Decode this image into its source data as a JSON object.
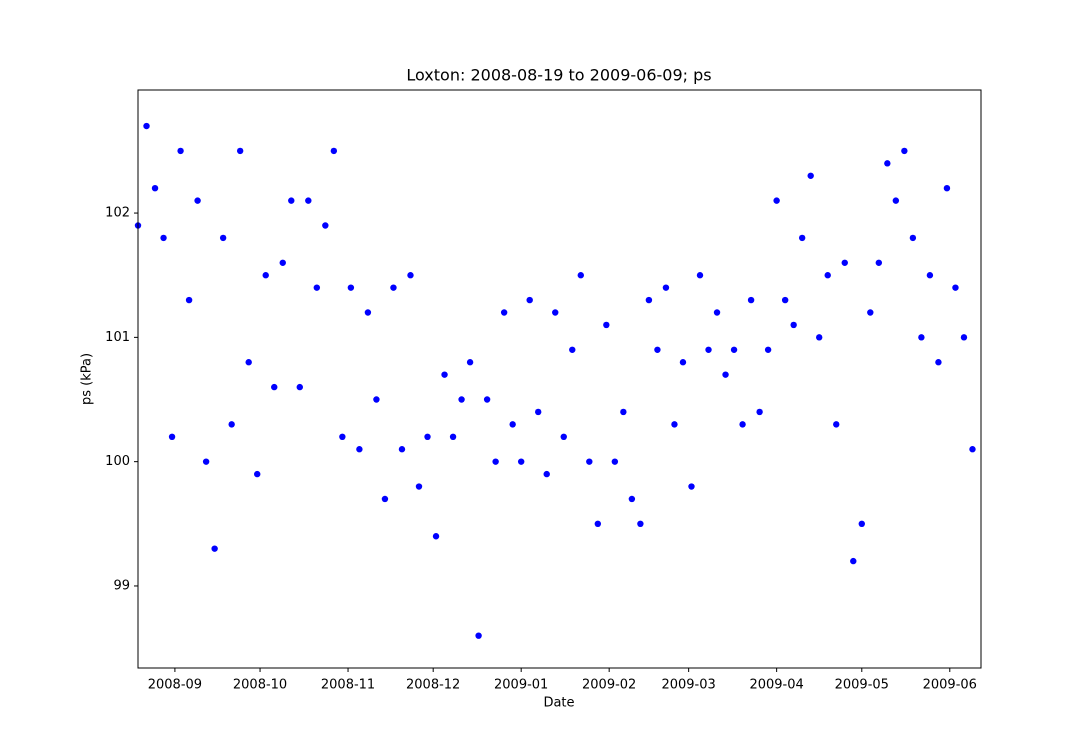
{
  "chart_data": {
    "type": "scatter",
    "title": "Loxton: 2008-08-19 to 2009-06-09; ps",
    "x_label": "Date",
    "y_label": "ps (kPa)",
    "series": [
      {
        "color": "#0000ff",
        "x": [
          "2008-08-19",
          "2008-08-22",
          "2008-08-25",
          "2008-08-28",
          "2008-08-31",
          "2008-09-03",
          "2008-09-06",
          "2008-09-09",
          "2008-09-12",
          "2008-09-15",
          "2008-09-18",
          "2008-09-21",
          "2008-09-24",
          "2008-09-27",
          "2008-09-30",
          "2008-10-03",
          "2008-10-06",
          "2008-10-09",
          "2008-10-12",
          "2008-10-15",
          "2008-10-18",
          "2008-10-21",
          "2008-10-24",
          "2008-10-27",
          "2008-10-30",
          "2008-11-02",
          "2008-11-05",
          "2008-11-08",
          "2008-11-11",
          "2008-11-14",
          "2008-11-17",
          "2008-11-20",
          "2008-11-23",
          "2008-11-26",
          "2008-11-29",
          "2008-12-02",
          "2008-12-05",
          "2008-12-08",
          "2008-12-11",
          "2008-12-14",
          "2008-12-17",
          "2008-12-20",
          "2008-12-23",
          "2008-12-26",
          "2008-12-29",
          "2009-01-01",
          "2009-01-04",
          "2009-01-07",
          "2009-01-10",
          "2009-01-13",
          "2009-01-16",
          "2009-01-19",
          "2009-01-22",
          "2009-01-25",
          "2009-01-28",
          "2009-01-31",
          "2009-02-03",
          "2009-02-06",
          "2009-02-09",
          "2009-02-12",
          "2009-02-15",
          "2009-02-18",
          "2009-02-21",
          "2009-02-24",
          "2009-02-27",
          "2009-03-02",
          "2009-03-05",
          "2009-03-08",
          "2009-03-11",
          "2009-03-14",
          "2009-03-17",
          "2009-03-20",
          "2009-03-23",
          "2009-03-26",
          "2009-03-29",
          "2009-04-01",
          "2009-04-04",
          "2009-04-07",
          "2009-04-10",
          "2009-04-13",
          "2009-04-16",
          "2009-04-19",
          "2009-04-22",
          "2009-04-25",
          "2009-04-28",
          "2009-05-01",
          "2009-05-04",
          "2009-05-07",
          "2009-05-10",
          "2009-05-13",
          "2009-05-16",
          "2009-05-19",
          "2009-05-22",
          "2009-05-25",
          "2009-05-28",
          "2009-05-31",
          "2009-06-03",
          "2009-06-06",
          "2009-06-09"
        ],
        "values": [
          101.9,
          102.7,
          102.2,
          101.8,
          100.2,
          102.5,
          101.3,
          102.1,
          100.0,
          99.3,
          101.8,
          100.3,
          102.5,
          100.8,
          99.9,
          101.5,
          100.6,
          101.6,
          102.1,
          100.6,
          102.1,
          101.4,
          101.9,
          102.5,
          100.2,
          101.4,
          100.1,
          101.2,
          100.5,
          99.7,
          101.4,
          100.1,
          101.5,
          99.8,
          100.2,
          99.4,
          100.7,
          100.2,
          100.5,
          100.8,
          98.6,
          100.5,
          100.0,
          101.2,
          100.3,
          100.0,
          101.3,
          100.4,
          99.9,
          101.2,
          100.2,
          100.9,
          101.5,
          100.0,
          99.5,
          101.1,
          100.0,
          100.4,
          99.7,
          99.5,
          101.3,
          100.9,
          101.4,
          100.3,
          100.8,
          99.8,
          101.5,
          100.9,
          101.2,
          100.7,
          100.9,
          100.3,
          101.3,
          100.4,
          100.9,
          102.1,
          101.3,
          101.1,
          101.8,
          102.3,
          101.0,
          101.5,
          100.3,
          101.6,
          99.2,
          99.5,
          101.2,
          101.6,
          102.4,
          102.1,
          102.5,
          101.8,
          101.0,
          101.5,
          100.8,
          102.2,
          101.4,
          101.0,
          100.1
        ]
      }
    ],
    "xlim": [
      "2008-08-19",
      "2009-06-12"
    ],
    "xticks": [
      {
        "value": "2008-09-01",
        "label": "2008-09"
      },
      {
        "value": "2008-10-01",
        "label": "2008-10"
      },
      {
        "value": "2008-11-01",
        "label": "2008-11"
      },
      {
        "value": "2008-12-01",
        "label": "2008-12"
      },
      {
        "value": "2009-01-01",
        "label": "2009-01"
      },
      {
        "value": "2009-02-01",
        "label": "2009-02"
      },
      {
        "value": "2009-03-01",
        "label": "2009-03"
      },
      {
        "value": "2009-04-01",
        "label": "2009-04"
      },
      {
        "value": "2009-05-01",
        "label": "2009-05"
      },
      {
        "value": "2009-06-01",
        "label": "2009-06"
      }
    ],
    "ylim": [
      98.34,
      102.99
    ],
    "yticks": [
      99,
      100,
      101,
      102
    ],
    "grid": false
  }
}
